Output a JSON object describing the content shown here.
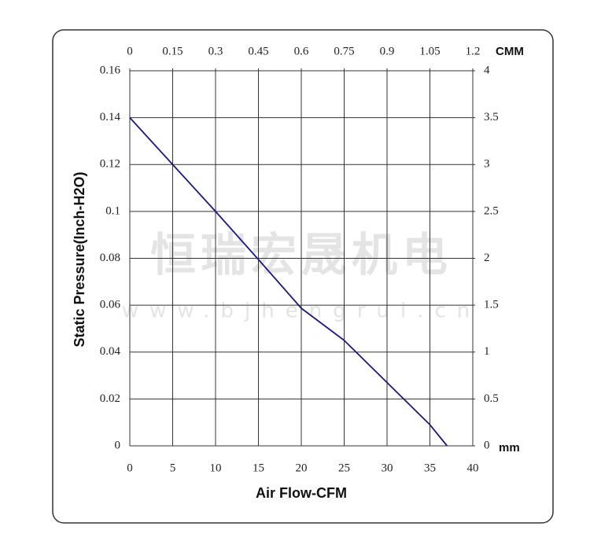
{
  "chart_data": {
    "type": "line",
    "x_label": "Air Flow-CFM",
    "y_label": "Static Pressure(Inch-H2O)",
    "x2_unit": "CMM",
    "y2_unit": "mm",
    "watermark": [
      "恒瑞宏晟机电",
      "www.bjhengrui.cn"
    ],
    "x": [
      0,
      5,
      10,
      15,
      20,
      25,
      30,
      35,
      37
    ],
    "values": [
      0.14,
      0.12,
      0.1,
      0.0795,
      0.0587,
      0.045,
      0.027,
      0.009,
      0
    ],
    "color": "#1a1a7a",
    "xlim": [
      0,
      40
    ],
    "xticks": [
      0,
      5,
      10,
      15,
      20,
      25,
      30,
      35,
      40
    ],
    "ylim": [
      0,
      0.16
    ],
    "yticks": [
      0,
      0.02,
      0.04,
      0.06,
      0.08,
      0.1,
      0.12,
      0.14,
      0.16
    ],
    "x2lim": [
      0,
      1.2
    ],
    "x2ticks": [
      0,
      0.15,
      0.3,
      0.45,
      0.6,
      0.75,
      0.9,
      1.05,
      1.2
    ],
    "y2lim": [
      0,
      4
    ],
    "y2ticks": [
      0,
      0.5,
      1,
      1.5,
      2,
      2.5,
      3,
      3.5,
      4
    ],
    "grid": true
  }
}
